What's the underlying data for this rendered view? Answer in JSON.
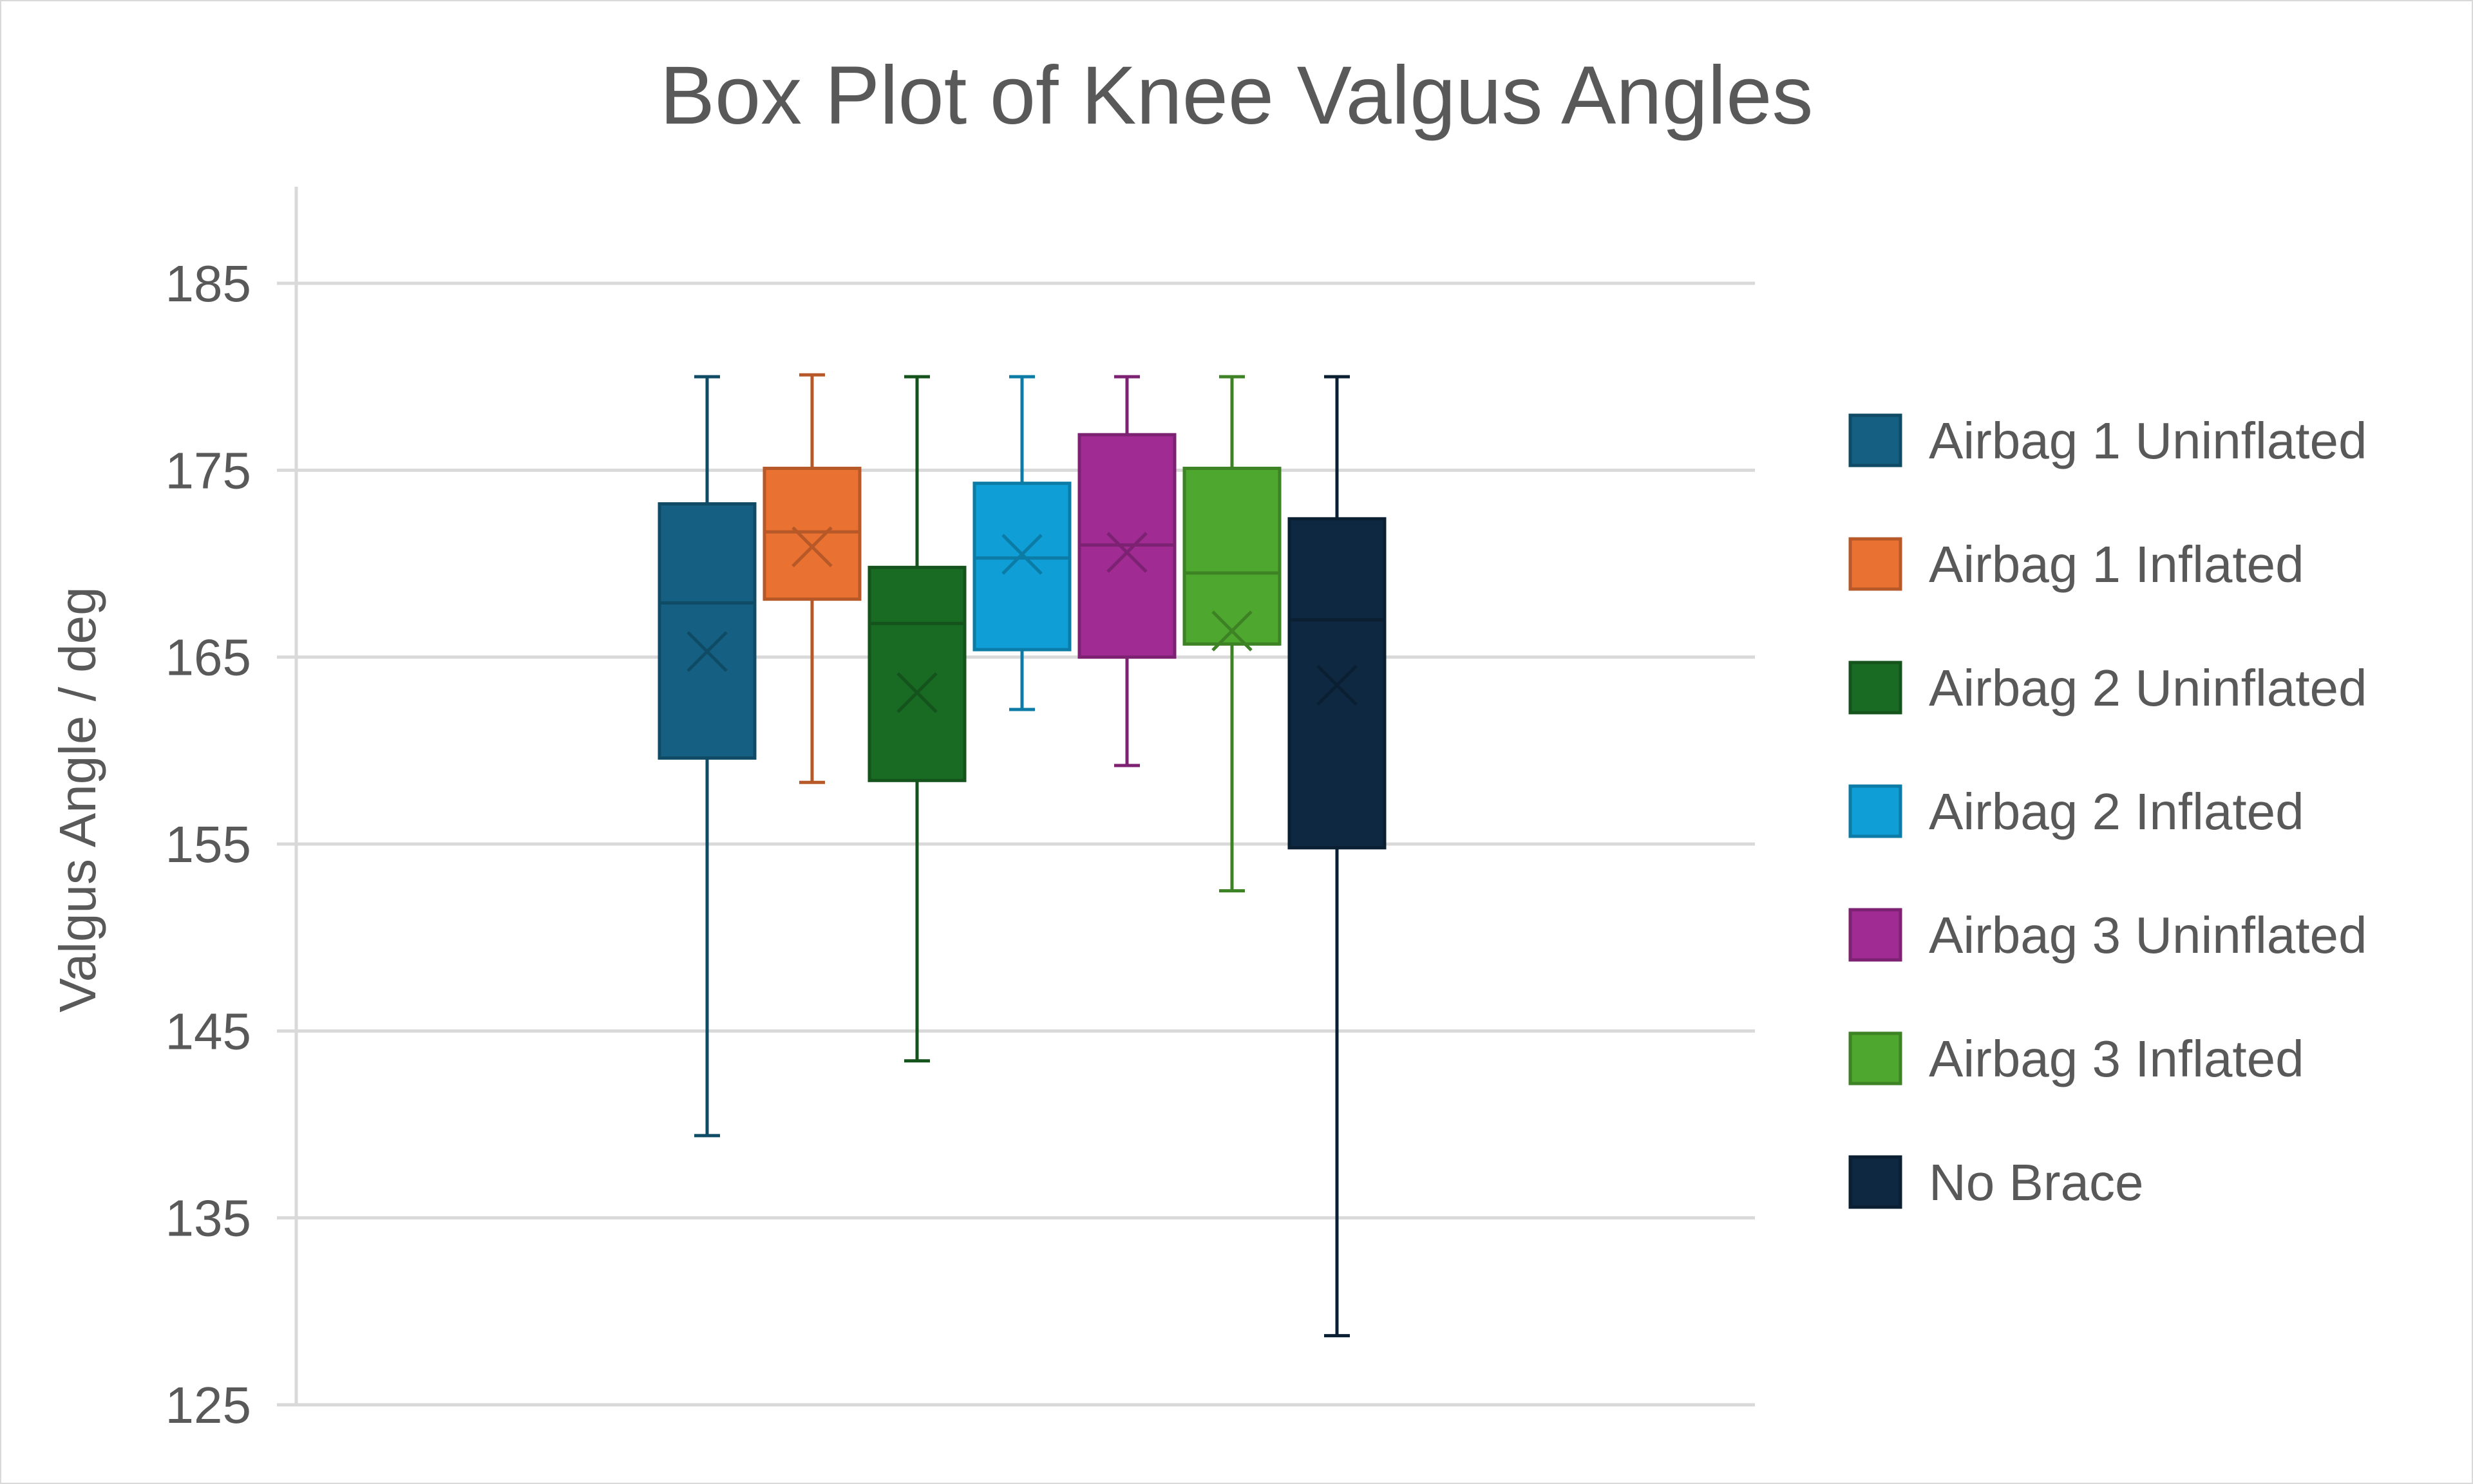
{
  "chart_data": {
    "type": "box",
    "title": "Box Plot of Knee Valgus Angles",
    "xlabel": "",
    "ylabel": "Valgus Angle / deg",
    "ylim": [
      125,
      190
    ],
    "yticks": [
      125,
      135,
      145,
      155,
      165,
      175,
      185
    ],
    "grid": true,
    "legend_position": "right",
    "series": [
      {
        "name": "Airbag 1 Uninflated",
        "color": "#156082",
        "min": 139.4,
        "q1": 159.6,
        "median": 167.9,
        "q3": 173.2,
        "max": 180.0,
        "mean": 165.3
      },
      {
        "name": "Airbag 1 Inflated",
        "color": "#E97132",
        "min": 158.3,
        "q1": 168.1,
        "median": 171.7,
        "q3": 175.1,
        "max": 180.1,
        "mean": 170.9
      },
      {
        "name": "Airbag 2 Uninflated",
        "color": "#196B24",
        "min": 143.4,
        "q1": 158.4,
        "median": 166.8,
        "q3": 169.8,
        "max": 180.0,
        "mean": 163.1
      },
      {
        "name": "Airbag 2 Inflated",
        "color": "#0F9ED5",
        "min": 162.2,
        "q1": 165.4,
        "median": 170.3,
        "q3": 174.3,
        "max": 180.0,
        "mean": 170.5
      },
      {
        "name": "Airbag 3 Uninflated",
        "color": "#A02B93",
        "min": 159.2,
        "q1": 165.0,
        "median": 171.0,
        "q3": 176.9,
        "max": 180.0,
        "mean": 170.6
      },
      {
        "name": "Airbag 3 Inflated",
        "color": "#4EA72E",
        "min": 152.5,
        "q1": 165.7,
        "median": 169.5,
        "q3": 175.1,
        "max": 180.0,
        "mean": 166.4
      },
      {
        "name": "No Brace",
        "color": "#0E2841",
        "min": 128.7,
        "q1": 154.8,
        "median": 167.0,
        "q3": 172.4,
        "max": 180.0,
        "mean": 163.5
      }
    ]
  }
}
